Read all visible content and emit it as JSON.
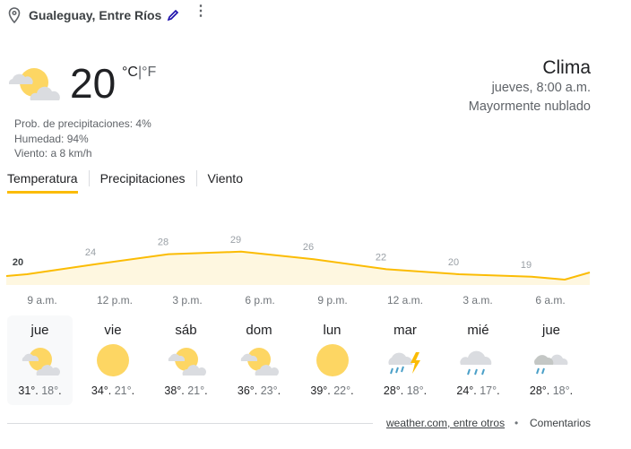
{
  "location": {
    "name": "Gualeguay, Entre Ríos"
  },
  "current": {
    "temperature": "20",
    "unit_c": "°C",
    "unit_sep": "|",
    "unit_f": "°F",
    "icon": "partly-cloudy-icon",
    "precip": "Prob. de precipitaciones: 4%",
    "humidity": "Humedad: 94%",
    "wind": "Viento: a 8 km/h"
  },
  "header": {
    "title": "Clima",
    "datetime": "jueves, 8:00 a.m.",
    "condition": "Mayormente nublado"
  },
  "tabs": [
    {
      "label": "Temperatura",
      "active": true
    },
    {
      "label": "Precipitaciones"
    },
    {
      "label": "Viento"
    }
  ],
  "chart_data": {
    "type": "area",
    "x": [
      "9 a.m.",
      "12 p.m.",
      "3 p.m.",
      "6 p.m.",
      "9 p.m.",
      "12 a.m.",
      "3 a.m.",
      "6 a.m."
    ],
    "values": [
      20,
      24,
      28,
      29,
      26,
      22,
      20,
      19
    ],
    "labels": [
      "20",
      "24",
      "28",
      "29",
      "26",
      "22",
      "20",
      "19"
    ],
    "color": "#fbbc04"
  },
  "days": [
    {
      "name": "jue",
      "icon": "partly-cloudy",
      "high": "31°",
      "low": "18°"
    },
    {
      "name": "vie",
      "icon": "sunny",
      "high": "34°",
      "low": "21°"
    },
    {
      "name": "sáb",
      "icon": "partly-cloudy",
      "high": "38°",
      "low": "21°"
    },
    {
      "name": "dom",
      "icon": "partly-cloudy",
      "high": "36°",
      "low": "23°"
    },
    {
      "name": "lun",
      "icon": "sunny",
      "high": "39°",
      "low": "22°"
    },
    {
      "name": "mar",
      "icon": "thunderstorm",
      "high": "28°",
      "low": "18°"
    },
    {
      "name": "mié",
      "icon": "rain",
      "high": "24°",
      "low": "17°"
    },
    {
      "name": "jue",
      "icon": "showers",
      "high": "28°",
      "low": "18°"
    }
  ],
  "footer": {
    "source": "weather.com, entre otros",
    "separator": "•",
    "feedback": "Comentarios"
  }
}
